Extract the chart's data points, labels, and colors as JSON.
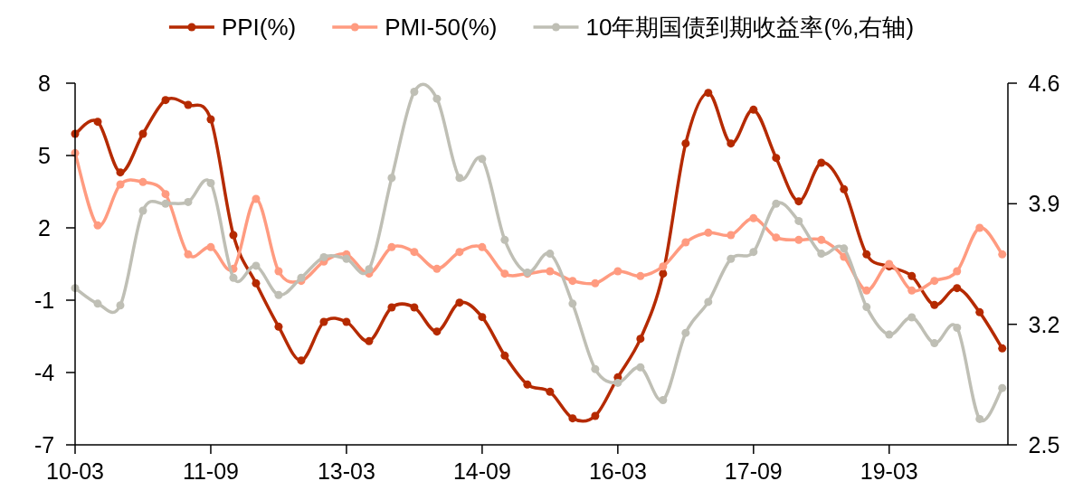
{
  "chart_data": {
    "type": "line",
    "categories": [
      "10-03",
      null,
      null,
      null,
      null,
      null,
      "11-09",
      null,
      null,
      null,
      null,
      null,
      "13-03",
      null,
      null,
      null,
      null,
      null,
      "14-09",
      null,
      null,
      null,
      null,
      null,
      "16-03",
      null,
      null,
      null,
      null,
      null,
      "17-09",
      null,
      null,
      null,
      null,
      null,
      "19-03",
      null,
      null,
      null,
      null,
      null
    ],
    "series": [
      {
        "name": "PPI(%)",
        "color": "#b52a00",
        "values": [
          5.9,
          6.4,
          4.3,
          5.9,
          7.3,
          7.1,
          6.5,
          1.7,
          -0.3,
          -2.1,
          -3.5,
          -1.9,
          -1.9,
          -2.7,
          -1.3,
          -1.3,
          -2.3,
          -1.1,
          -1.7,
          -3.3,
          -4.5,
          -4.8,
          -5.9,
          -5.8,
          -4.2,
          -2.6,
          0.1,
          5.5,
          7.6,
          5.5,
          6.9,
          4.9,
          3.1,
          4.7,
          3.6,
          0.9,
          0.4,
          0.0,
          -1.2,
          -0.5,
          -1.5,
          -3.0
        ]
      },
      {
        "name": "PMI-50(%)",
        "color": "#ff9b80",
        "values": [
          5.1,
          2.1,
          3.8,
          3.9,
          3.4,
          0.9,
          1.2,
          0.3,
          3.2,
          0.2,
          -0.2,
          0.6,
          0.9,
          0.1,
          1.2,
          1.0,
          0.3,
          1.0,
          1.2,
          0.1,
          0.1,
          0.2,
          -0.2,
          -0.3,
          0.2,
          0.0,
          0.4,
          1.4,
          1.8,
          1.7,
          2.4,
          1.6,
          1.5,
          1.5,
          0.8,
          -0.6,
          0.5,
          -0.6,
          -0.2,
          0.2,
          2.0,
          0.9
        ]
      },
      {
        "name": "10年期国债到期收益率(%,右轴)",
        "color": "#bfbfb5",
        "axis": "y2",
        "values": [
          3.41,
          3.32,
          3.31,
          3.86,
          3.9,
          3.91,
          4.02,
          3.47,
          3.54,
          3.37,
          3.47,
          3.59,
          3.58,
          3.52,
          4.05,
          4.55,
          4.51,
          4.05,
          4.16,
          3.69,
          3.5,
          3.61,
          3.32,
          2.94,
          2.86,
          2.95,
          2.76,
          3.15,
          3.33,
          3.58,
          3.62,
          3.9,
          3.8,
          3.61,
          3.64,
          3.3,
          3.14,
          3.24,
          3.09,
          3.18,
          2.65,
          2.83
        ]
      }
    ],
    "ylim": [
      -7,
      8
    ],
    "yticks": [
      -7,
      -4,
      -1,
      2,
      5,
      8
    ],
    "y2lim": [
      2.5,
      4.6
    ],
    "y2ticks": [
      2.5,
      3.2,
      3.9,
      4.6
    ],
    "legend": "top",
    "marker": "circle",
    "line_style": "solid"
  }
}
